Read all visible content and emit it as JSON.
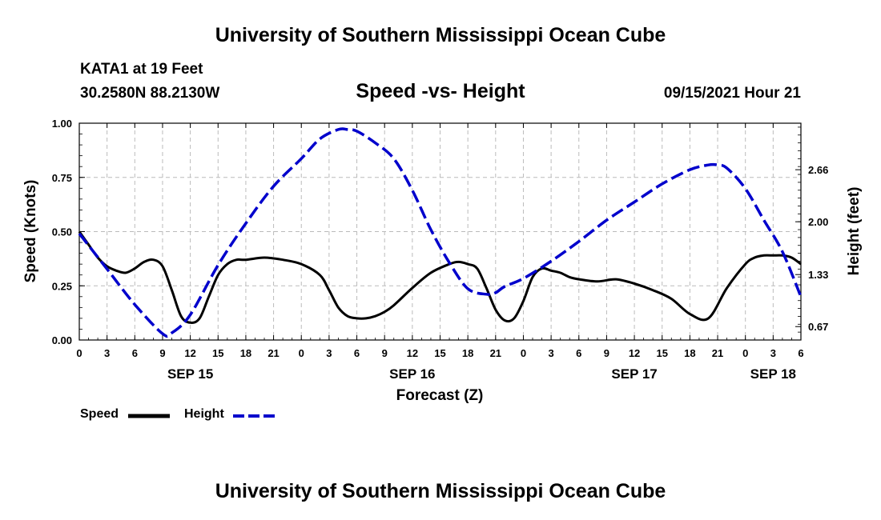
{
  "header": {
    "title": "University of Southern Mississippi Ocean Cube",
    "station": "KATA1 at 19 Feet",
    "coords": "30.2580N  88.2130W",
    "chart_title": "Speed -vs- Height",
    "datetime": "09/15/2021 Hour 21"
  },
  "footer": {
    "title": "University of Southern Mississippi Ocean Cube"
  },
  "legend": {
    "speed": "Speed",
    "height": "Height"
  },
  "colors": {
    "speed": "#000000",
    "height": "#0000cc",
    "grid": "#bbbbbb"
  },
  "chart_data": {
    "type": "line",
    "title": "Speed -vs- Height",
    "xlabel": "Forecast (Z)",
    "ylabel": "Speed (Knots)",
    "y2label": "Height (feet)",
    "x_range_hours": [
      0,
      78
    ],
    "x_tick_labels": [
      "0",
      "3",
      "6",
      "9",
      "12",
      "15",
      "18",
      "21",
      "0",
      "3",
      "6",
      "9",
      "12",
      "15",
      "18",
      "21",
      "0",
      "3",
      "6",
      "9",
      "12",
      "15",
      "18",
      "21",
      "0",
      "3",
      "6"
    ],
    "day_labels": [
      {
        "label": "SEP 15",
        "hour": 12
      },
      {
        "label": "SEP 16",
        "hour": 36
      },
      {
        "label": "SEP 17",
        "hour": 60
      },
      {
        "label": "SEP 18",
        "hour": 75
      }
    ],
    "ylim": [
      0,
      1.0
    ],
    "y_ticks": [
      "0.00",
      "0.25",
      "0.50",
      "0.75",
      "1.00"
    ],
    "y2lim": [
      0.5,
      3.25
    ],
    "y2_ticks": [
      "0.67",
      "1.33",
      "2.00",
      "2.66"
    ],
    "grid": true,
    "series": [
      {
        "name": "Speed",
        "axis": "left",
        "x": [
          0,
          1,
          2,
          3,
          4,
          5,
          6,
          7,
          8,
          9,
          10,
          11,
          12,
          13,
          14,
          15,
          16,
          17,
          18,
          20,
          22,
          24,
          26,
          27,
          28,
          29,
          30,
          31,
          32,
          33,
          34,
          36,
          38,
          40,
          41,
          42,
          43,
          44,
          45,
          46,
          47,
          48,
          49,
          50,
          51,
          52,
          53,
          54,
          56,
          58,
          60,
          62,
          64,
          66,
          68,
          70,
          72,
          73,
          74,
          75,
          76,
          77,
          78
        ],
        "values": [
          0.5,
          0.44,
          0.38,
          0.34,
          0.32,
          0.31,
          0.33,
          0.36,
          0.37,
          0.34,
          0.23,
          0.11,
          0.08,
          0.1,
          0.2,
          0.3,
          0.35,
          0.37,
          0.37,
          0.38,
          0.37,
          0.35,
          0.3,
          0.23,
          0.15,
          0.11,
          0.1,
          0.1,
          0.11,
          0.13,
          0.16,
          0.24,
          0.31,
          0.35,
          0.36,
          0.35,
          0.33,
          0.24,
          0.14,
          0.09,
          0.1,
          0.18,
          0.29,
          0.33,
          0.32,
          0.31,
          0.29,
          0.28,
          0.27,
          0.28,
          0.26,
          0.23,
          0.19,
          0.12,
          0.1,
          0.24,
          0.35,
          0.38,
          0.39,
          0.39,
          0.39,
          0.38,
          0.35
        ]
      },
      {
        "name": "Height",
        "axis": "right",
        "x": [
          0,
          3,
          6,
          9,
          10,
          12,
          15,
          18,
          21,
          24,
          26,
          28,
          29,
          30,
          32,
          34,
          36,
          38,
          40,
          42,
          44,
          45,
          46,
          48,
          51,
          54,
          57,
          60,
          63,
          66,
          68,
          69,
          70,
          72,
          74,
          76,
          78
        ],
        "values": [
          1.85,
          1.4,
          0.95,
          0.58,
          0.59,
          0.82,
          1.45,
          1.98,
          2.45,
          2.8,
          3.05,
          3.17,
          3.17,
          3.15,
          3.0,
          2.8,
          2.4,
          1.9,
          1.48,
          1.15,
          1.08,
          1.1,
          1.18,
          1.28,
          1.5,
          1.75,
          2.02,
          2.25,
          2.48,
          2.66,
          2.72,
          2.72,
          2.68,
          2.42,
          2.02,
          1.62,
          1.05
        ]
      }
    ]
  }
}
